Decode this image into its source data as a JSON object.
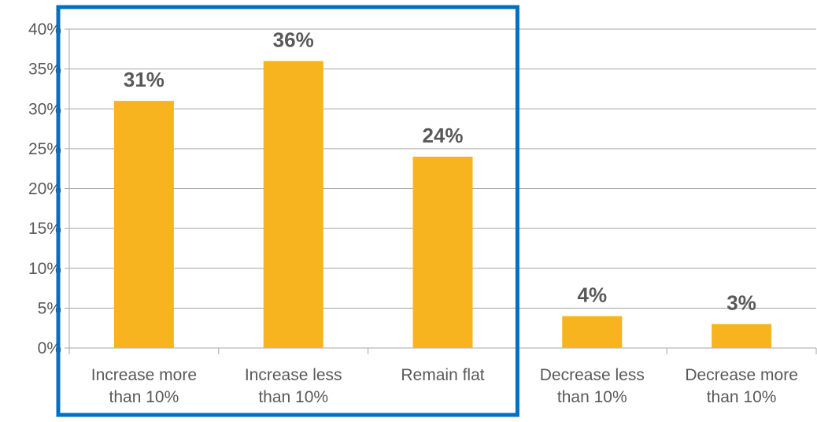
{
  "chart_data": {
    "type": "bar",
    "title": "",
    "xlabel": "",
    "ylabel": "",
    "categories": [
      [
        "Increase more",
        "than 10%"
      ],
      [
        "Increase less",
        "than 10%"
      ],
      [
        "Remain flat"
      ],
      [
        "Decrease less",
        "than 10%"
      ],
      [
        "Decrease more",
        "than 10%"
      ]
    ],
    "values": [
      31,
      36,
      24,
      4,
      3
    ],
    "data_labels": [
      "31%",
      "36%",
      "24%",
      "4%",
      "3%"
    ],
    "ylim": [
      0,
      40
    ],
    "yticks": [
      0,
      5,
      10,
      15,
      20,
      25,
      30,
      35,
      40
    ],
    "ytick_labels": [
      "0%",
      "5%",
      "10%",
      "15%",
      "20%",
      "25%",
      "30%",
      "35%",
      "40%"
    ],
    "grid": true,
    "legend": "none",
    "highlight": {
      "categories": [
        "Increase more than 10%",
        "Increase less than 10%",
        "Remain flat"
      ],
      "color": "#0070C0"
    },
    "colors": {
      "bar": "#F8B41E",
      "grid": "#A6A6A6",
      "text": "#595959",
      "axis": "#A6A6A6"
    }
  }
}
